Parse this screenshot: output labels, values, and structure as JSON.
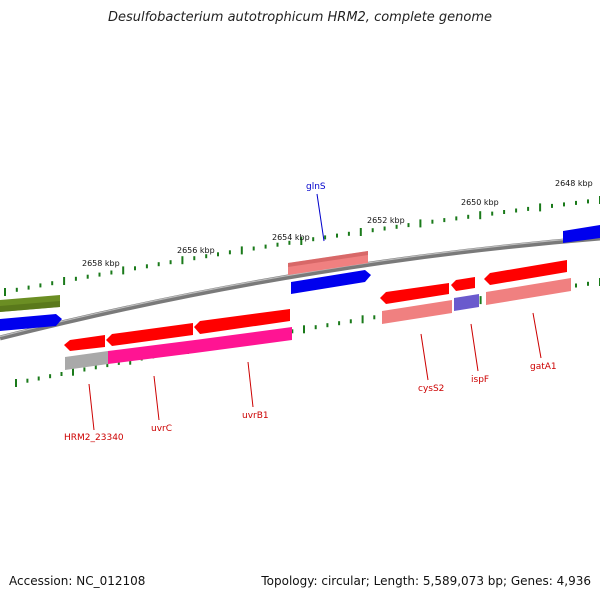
{
  "title": "Desulfobacterium autotrophicum HRM2, complete genome",
  "footer": {
    "accession": "Accession: NC_012108",
    "stats": "Topology: circular; Length: 5,589,073 bp; Genes: 4,936"
  },
  "ticks": [
    "2658 kbp",
    "2656 kbp",
    "2654 kbp",
    "2652 kbp",
    "2650 kbp",
    "2648 kbp"
  ],
  "gene_labels": [
    "glnS",
    "HRM2_23340",
    "uvrC",
    "uvrB1",
    "cysS2",
    "ispF",
    "gatA1"
  ],
  "colors": {
    "backbone": "#808080",
    "tick": "#1a7a1a",
    "label_red": "#cc0000",
    "label_blue": "#0000cc",
    "gene_red": "#ff0000",
    "gene_pink": "#f08080",
    "gene_blue": "#0000ee",
    "gene_magenta": "#ff1493",
    "gene_olive": "#6b8e23",
    "gene_purple": "#6a5acd",
    "gene_gray": "#a9a9a9"
  }
}
